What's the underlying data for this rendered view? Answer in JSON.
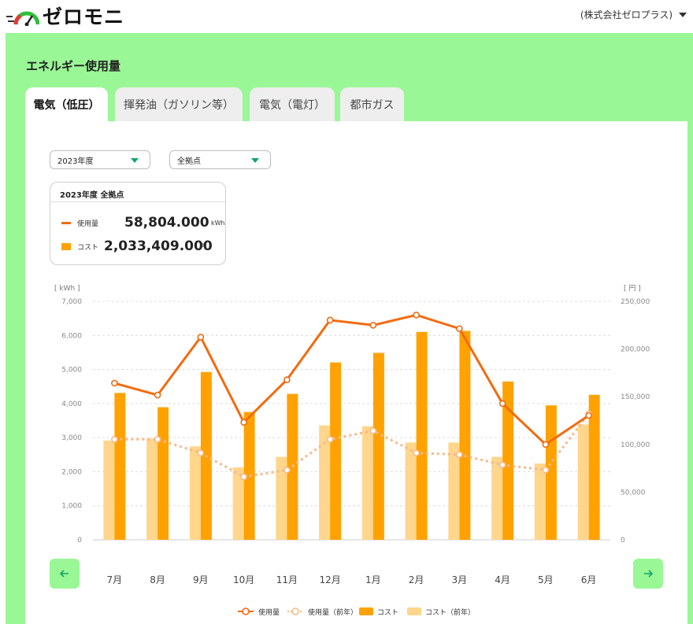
{
  "header": {
    "logo_text": "ゼロモニ",
    "company": "(株式会社ゼロプラス)"
  },
  "page": {
    "section_title": "エネルギー使用量"
  },
  "tabs": [
    {
      "label": "電気（低圧）",
      "active": true
    },
    {
      "label": "揮発油（ガソリン等）",
      "active": false
    },
    {
      "label": "電気（電灯）",
      "active": false
    },
    {
      "label": "都市ガス",
      "active": false
    }
  ],
  "filters": {
    "year": "2023年度",
    "location": "全拠点"
  },
  "summary": {
    "title": "2023年度 全拠点",
    "usage_label": "使用量",
    "usage_value": "58,804.000",
    "usage_unit": "kWh",
    "cost_label": "コスト",
    "cost_value": "2,033,409.000",
    "cost_unit": "円"
  },
  "nav": {
    "prev_icon": "arrow-left-icon",
    "next_icon": "arrow-right-icon"
  },
  "colors": {
    "green_panel": "#99f795",
    "usage": "#f26b0f",
    "usage_prev": "#f7b98a",
    "cost": "#ffa200",
    "cost_prev": "#ffd68c",
    "accent": "#12a46a"
  },
  "chart_data": {
    "type": "bar",
    "categories": [
      "7月",
      "8月",
      "9月",
      "10月",
      "11月",
      "12月",
      "1月",
      "2月",
      "3月",
      "4月",
      "5月",
      "6月"
    ],
    "left_axis_label": "[ kWh ]",
    "right_axis_label": "[ 円 ]",
    "left_ticks": [
      "7,000",
      "6,000",
      "5,000",
      "4,000",
      "3,000",
      "2,000",
      "1,000",
      "0"
    ],
    "right_ticks": [
      "250,000",
      "200,000",
      "150,000",
      "100,000",
      "50,000",
      "0"
    ],
    "ylim_left": [
      0,
      7000
    ],
    "ylim_right": [
      0,
      250000
    ],
    "grid": true,
    "legend_position": "bottom",
    "series": [
      {
        "name": "使用量",
        "type": "line",
        "axis": "left",
        "values": [
          4600,
          4250,
          5950,
          3450,
          4700,
          6450,
          6300,
          6600,
          6200,
          4000,
          2800,
          3650
        ]
      },
      {
        "name": "使用量（前年）",
        "type": "line-dashed",
        "axis": "left",
        "values": [
          2950,
          2950,
          2550,
          1850,
          2050,
          2950,
          3200,
          2550,
          2500,
          2200,
          2050,
          3700
        ]
      },
      {
        "name": "コスト",
        "type": "bar",
        "axis": "right",
        "values": [
          154000,
          139000,
          176000,
          134000,
          153000,
          186000,
          196000,
          218000,
          219000,
          166000,
          141000,
          152000
        ]
      },
      {
        "name": "コスト（前年）",
        "type": "bar",
        "axis": "right",
        "values": [
          104000,
          106000,
          98000,
          76000,
          87000,
          120000,
          119000,
          102000,
          102000,
          87000,
          80000,
          121000
        ]
      }
    ]
  }
}
